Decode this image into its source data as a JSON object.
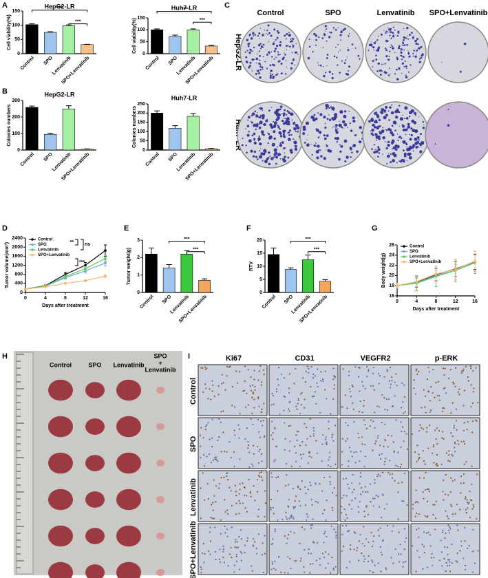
{
  "panel_labels": [
    "A",
    "B",
    "C",
    "D",
    "E",
    "F",
    "G",
    "H",
    "I"
  ],
  "chart_data": [
    {
      "type": "bar",
      "title": "HepG2-LR",
      "ylabel": "Cell viability(%)",
      "categories": [
        "Control",
        "SPO",
        "Lenvatinib",
        "SPO+Lenvatinib"
      ],
      "values": [
        102,
        75,
        99,
        32
      ],
      "errors": [
        3,
        2,
        2,
        1
      ],
      "colors": [
        "#000000",
        "#9ec5f0",
        "#a3f0a3",
        "#f7c08a"
      ],
      "ylim": [
        0,
        150
      ],
      "yticks": [
        0,
        50,
        100,
        150
      ],
      "annotations": [
        "***",
        "***"
      ]
    },
    {
      "type": "bar",
      "title": "Huh7-LR",
      "ylabel": "Cell viability(%)",
      "categories": [
        "Control",
        "SPO",
        "Lenvatinib",
        "SPO+Lenvatinib"
      ],
      "values": [
        100,
        73,
        100,
        32
      ],
      "errors": [
        4,
        5,
        4,
        3
      ],
      "colors": [
        "#000000",
        "#9ec5f0",
        "#a3f0a3",
        "#f7c08a"
      ],
      "ylim": [
        0,
        150
      ],
      "yticks": [
        0,
        50,
        100,
        150
      ],
      "annotations": [
        "***",
        "***"
      ]
    },
    {
      "type": "bar",
      "title": "HepG2-LR",
      "ylabel": "Colonies numbers",
      "categories": [
        "Control",
        "SPO",
        "Lenvatinib",
        "SPO+Lenvatinib"
      ],
      "values": [
        258,
        95,
        248,
        5
      ],
      "errors": [
        8,
        6,
        20,
        2
      ],
      "colors": [
        "#000000",
        "#9ec5f0",
        "#a3f0a3",
        "#f7c08a"
      ],
      "ylim": [
        0,
        300
      ],
      "yticks": [
        0,
        100,
        200,
        300
      ]
    },
    {
      "type": "bar",
      "title": "Huh7-LR",
      "ylabel": "Colonies numbers",
      "categories": [
        "Control",
        "SPO",
        "Lenvatinib",
        "SPO+Lenvatinib"
      ],
      "values": [
        200,
        118,
        183,
        7
      ],
      "errors": [
        12,
        14,
        15,
        2
      ],
      "colors": [
        "#000000",
        "#9ec5f0",
        "#a3f0a3",
        "#f7c08a"
      ],
      "ylim": [
        0,
        250
      ],
      "yticks": [
        0,
        50,
        100,
        150,
        200,
        250
      ]
    },
    {
      "type": "line",
      "ylabel": "Tumor volume(mm³)",
      "xlabel": "Days after treatment",
      "x": [
        0,
        4,
        8,
        12,
        16
      ],
      "xlim": [
        0,
        16
      ],
      "xticks": [
        0,
        4,
        8,
        12,
        16
      ],
      "ylim": [
        0,
        2400
      ],
      "yticks": [
        0,
        400,
        800,
        1200,
        1600,
        2000,
        2400
      ],
      "annotations": [
        "**",
        "ns",
        "***"
      ],
      "series": [
        {
          "name": "Control",
          "color": "#000000",
          "values": [
            150,
            300,
            800,
            1200,
            1850
          ],
          "errors": [
            20,
            30,
            80,
            120,
            250
          ]
        },
        {
          "name": "SPO",
          "color": "#6fa8e8",
          "values": [
            150,
            280,
            650,
            950,
            1300
          ],
          "errors": [
            20,
            30,
            60,
            90,
            130
          ]
        },
        {
          "name": "Lenvatinib",
          "color": "#5cc65c",
          "values": [
            150,
            290,
            700,
            1050,
            1500
          ],
          "errors": [
            20,
            30,
            70,
            100,
            150
          ]
        },
        {
          "name": "SPO+Lenvatinib",
          "color": "#f5b56a",
          "values": [
            150,
            250,
            400,
            520,
            720
          ],
          "errors": [
            10,
            15,
            30,
            40,
            50
          ]
        }
      ]
    },
    {
      "type": "bar",
      "ylabel": "Tumor weight(g)",
      "categories": [
        "Control",
        "SPO",
        "Lenvatinib",
        "SPO+Lenvatinib"
      ],
      "values": [
        2.2,
        1.4,
        2.2,
        0.7
      ],
      "errors": [
        0.35,
        0.2,
        0.2,
        0.08
      ],
      "colors": [
        "#000000",
        "#9ec5f0",
        "#3cc83c",
        "#f5a55a"
      ],
      "ylim": [
        0,
        3
      ],
      "yticks": [
        0,
        1,
        2,
        3
      ],
      "annotations": [
        "***",
        "***"
      ]
    },
    {
      "type": "bar",
      "ylabel": "RTV",
      "categories": [
        "Control",
        "SPO",
        "Lenvatinib",
        "SPO+Lenvatinib"
      ],
      "values": [
        14.5,
        8.8,
        12.5,
        4.3
      ],
      "errors": [
        2.5,
        0.6,
        1.8,
        0.6
      ],
      "colors": [
        "#000000",
        "#9ec5f0",
        "#3cc83c",
        "#f5a55a"
      ],
      "ylim": [
        0,
        20
      ],
      "yticks": [
        0,
        5,
        10,
        15,
        20
      ],
      "annotations": [
        "***",
        "***"
      ]
    },
    {
      "type": "line",
      "ylabel": "Body weight(g)",
      "xlabel": "Days after treatment",
      "x": [
        0,
        4,
        8,
        12,
        16
      ],
      "xlim": [
        0,
        16
      ],
      "xticks": [
        0,
        4,
        8,
        12,
        16
      ],
      "ylim": [
        16,
        26
      ],
      "yticks": [
        16,
        18,
        20,
        22,
        24,
        26
      ],
      "series": [
        {
          "name": "Control",
          "color": "#000000",
          "values": [
            18,
            18.7,
            20.2,
            21.3,
            22.7
          ],
          "errors": [
            0.5,
            1,
            1.2,
            1.5,
            1.5
          ]
        },
        {
          "name": "SPO",
          "color": "#6fa8e8",
          "values": [
            18,
            18.6,
            20,
            21,
            22.5
          ],
          "errors": [
            0.5,
            0.8,
            1,
            1.2,
            1.5
          ]
        },
        {
          "name": "Lenvatinib",
          "color": "#5cc65c",
          "values": [
            18,
            18.5,
            19.8,
            21,
            22.6
          ],
          "errors": [
            0.5,
            1.5,
            2,
            2.2,
            2.2
          ]
        },
        {
          "name": "SPO+Lenvatinib",
          "color": "#f5b56a",
          "values": [
            18,
            18.8,
            20.3,
            21.2,
            22.8
          ],
          "errors": [
            0.5,
            1,
            1.5,
            2,
            2
          ]
        }
      ]
    }
  ],
  "colony_assay": {
    "columns": [
      "Control",
      "SPO",
      "Lenvatinib",
      "SPO+Lenvatinib"
    ],
    "rows": [
      "HepG2-LR",
      "Huh7-LR"
    ]
  },
  "tumor_photo": {
    "columns": [
      "Control",
      "SPO",
      "Lenvatinib"
    ],
    "last_column": [
      "SPO",
      "+",
      "Lenvatinib"
    ]
  },
  "ihc": {
    "columns": [
      "Ki67",
      "CD31",
      "VEGFR2",
      "p-ERK"
    ],
    "rows": [
      "Control",
      "SPO",
      "Lenvatinib",
      "SPO+Lenvatinib"
    ]
  }
}
